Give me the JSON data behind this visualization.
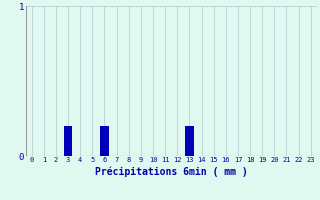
{
  "hours": [
    0,
    1,
    2,
    3,
    4,
    5,
    6,
    7,
    8,
    9,
    10,
    11,
    12,
    13,
    14,
    15,
    16,
    17,
    18,
    19,
    20,
    21,
    22,
    23
  ],
  "values": [
    0,
    0,
    0,
    0.2,
    0,
    0,
    0.2,
    0,
    0,
    0,
    0,
    0,
    0,
    0.2,
    0,
    0,
    0,
    0,
    0,
    0,
    0,
    0,
    0,
    0
  ],
  "xlabel": "Précipitations 6min ( mm )",
  "ylim": [
    0,
    1
  ],
  "xlim": [
    -0.5,
    23.5
  ],
  "yticks": [
    0,
    1
  ],
  "ytick_labels": [
    "0",
    "1"
  ],
  "xticks": [
    0,
    1,
    2,
    3,
    4,
    5,
    6,
    7,
    8,
    9,
    10,
    11,
    12,
    13,
    14,
    15,
    16,
    17,
    18,
    19,
    20,
    21,
    22,
    23
  ],
  "bar_color": "#0000bb",
  "background_color": "#e0f8f0",
  "grid_color": "#aacccc",
  "text_color": "#0000aa",
  "bar_width": 0.7
}
